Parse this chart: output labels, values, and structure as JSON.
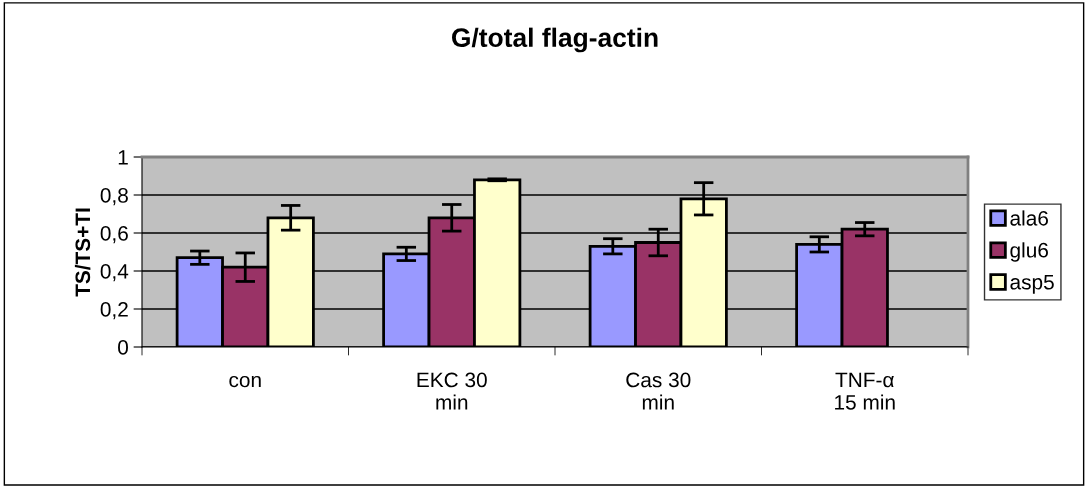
{
  "chart_data": {
    "type": "bar",
    "title": "G/total flag-actin",
    "ylabel": "TS/TS+TI",
    "categories": [
      "con",
      "EKC 30 min",
      "Cas 30 min",
      "TNF-α 15 min"
    ],
    "series": [
      {
        "name": "ala6",
        "color": "#9999ff",
        "values": [
          0.47,
          0.49,
          0.53,
          0.54
        ],
        "errors": [
          0.035,
          0.035,
          0.04,
          0.04
        ]
      },
      {
        "name": "glu6",
        "color": "#993366",
        "values": [
          0.42,
          0.68,
          0.55,
          0.62
        ],
        "errors": [
          0.075,
          0.07,
          0.07,
          0.035
        ]
      },
      {
        "name": "asp5",
        "color": "#ffffcc",
        "values": [
          0.68,
          0.88,
          0.78,
          null
        ],
        "errors": [
          0.065,
          0.005,
          0.085,
          null
        ]
      }
    ],
    "ylim": [
      0,
      1
    ],
    "yticks": [
      0,
      {
        "value": 0.2,
        "label": "0,2"
      },
      {
        "value": 0.4,
        "label": "0,4"
      },
      {
        "value": 0.6,
        "label": "0,6"
      },
      {
        "value": 0.8,
        "label": "0,8"
      },
      1
    ],
    "grid": "y",
    "legend": "right"
  }
}
